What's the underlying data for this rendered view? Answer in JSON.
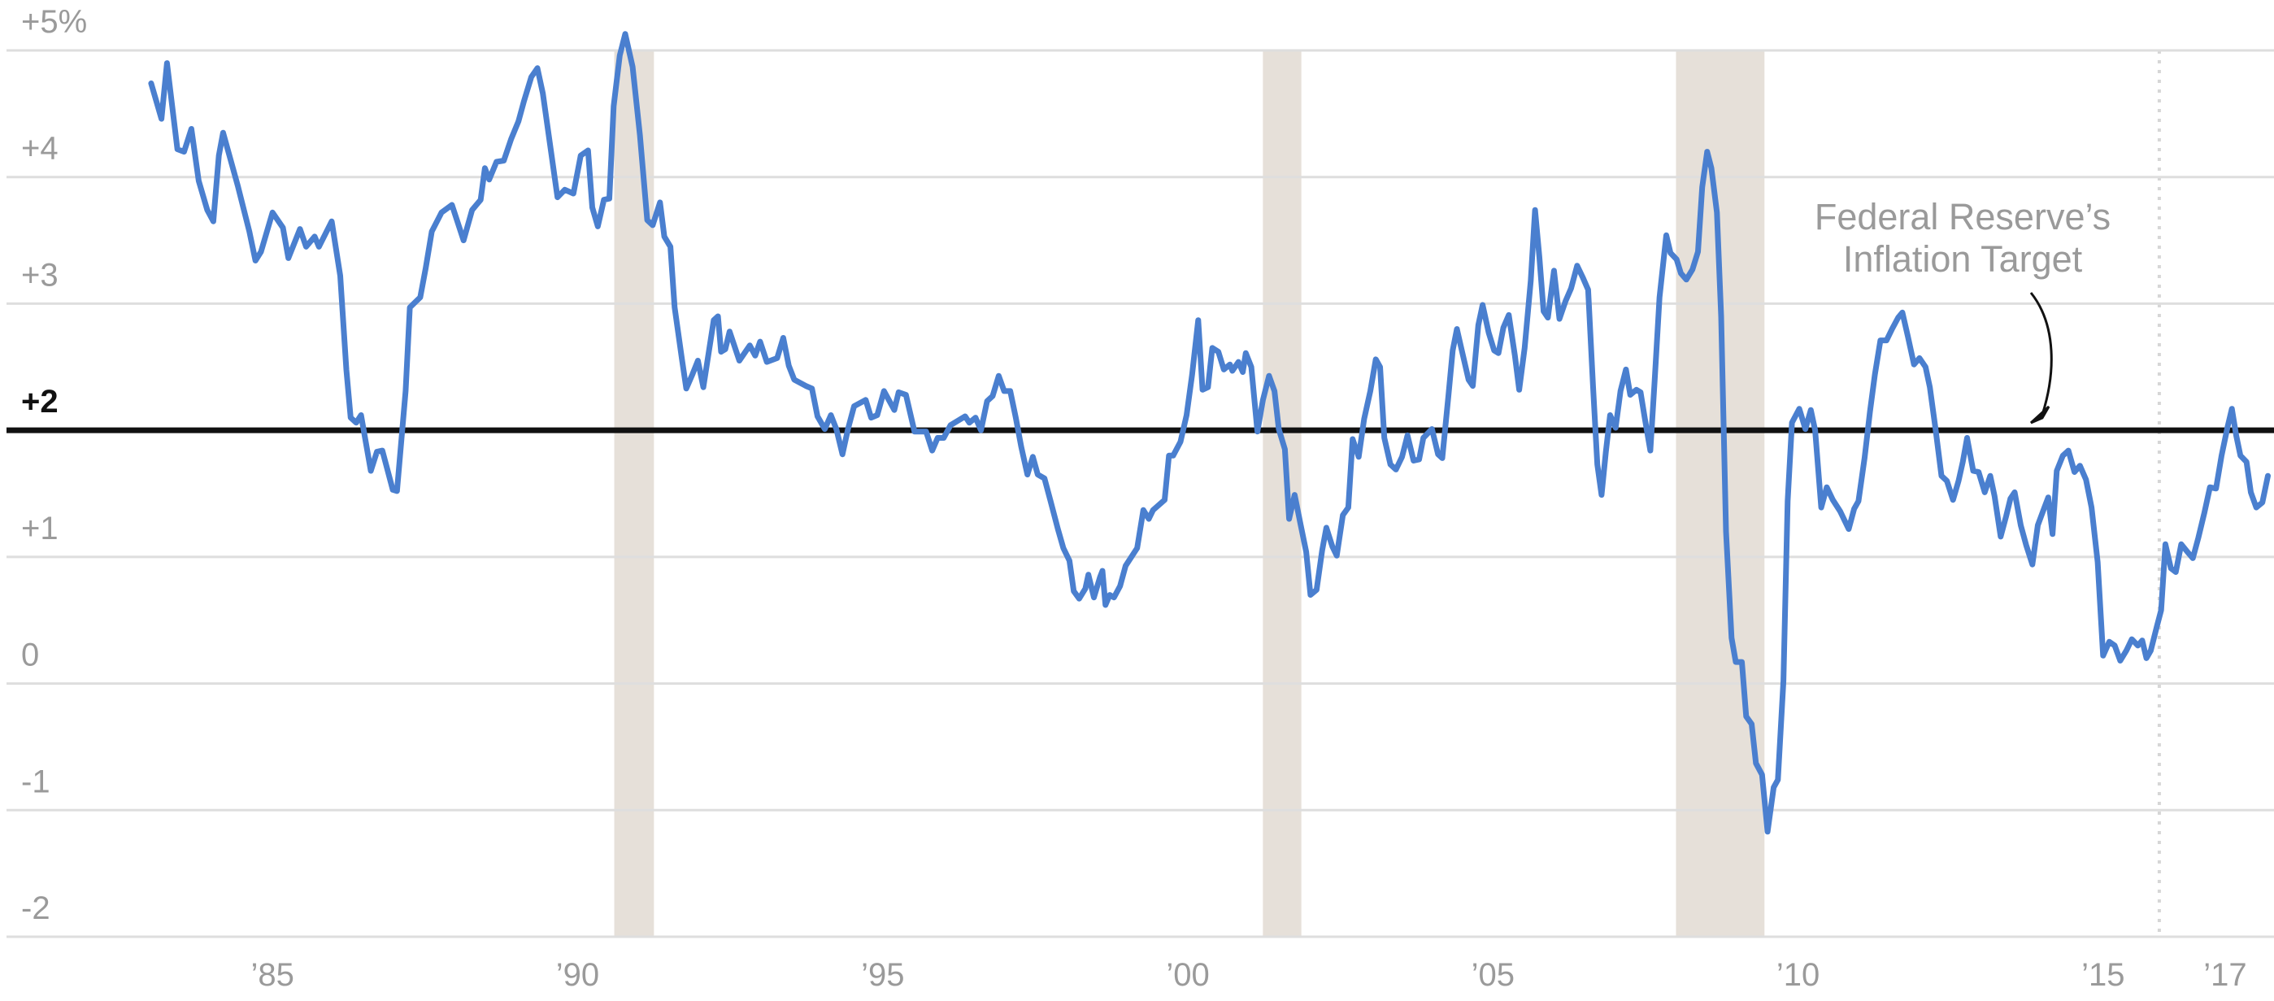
{
  "chart_data": {
    "type": "line",
    "color": "#4a7fcf",
    "grid": true,
    "target": 2,
    "annotation": [
      "Federal Reserve’s",
      "Inflation Target"
    ],
    "recessions": [
      [
        1990.6,
        1991.25
      ],
      [
        2001.23,
        2001.86
      ],
      [
        2008.0,
        2009.45
      ]
    ],
    "vline_x": 2015.92,
    "xlim": [
      1980.64,
      2017.8
    ],
    "ylim": [
      -2,
      5
    ],
    "yticks": [
      {
        "value": 5,
        "label": "+5%"
      },
      {
        "value": 4,
        "label": "+4"
      },
      {
        "value": 3,
        "label": "+3"
      },
      {
        "value": 2,
        "label": "+2"
      },
      {
        "value": 1,
        "label": "+1"
      },
      0,
      -1,
      -2
    ],
    "xticks": [
      {
        "value": 1985,
        "label": "’85"
      },
      {
        "value": 1990,
        "label": "’90"
      },
      {
        "value": 1995,
        "label": "’95"
      },
      {
        "value": 2000,
        "label": "’00"
      },
      {
        "value": 2005,
        "label": "’05"
      },
      {
        "value": 2010,
        "label": "’10"
      },
      {
        "value": 2015,
        "label": "’15"
      },
      {
        "value": 2017,
        "label": "’17"
      }
    ],
    "x": [
      1983.01,
      1983.18,
      1983.27,
      1983.44,
      1983.55,
      1983.67,
      1983.79,
      1983.93,
      1984.03,
      1984.12,
      1984.19,
      1984.43,
      1984.62,
      1984.72,
      1984.81,
      1985.0,
      1985.17,
      1985.26,
      1985.45,
      1985.55,
      1985.69,
      1985.76,
      1985.97,
      1986.11,
      1986.21,
      1986.28,
      1986.37,
      1986.45,
      1986.61,
      1986.71,
      1986.8,
      1986.97,
      1987.04,
      1987.18,
      1987.25,
      1987.42,
      1987.51,
      1987.61,
      1987.77,
      1987.94,
      1988.13,
      1988.27,
      1988.41,
      1988.48,
      1988.55,
      1988.67,
      1988.79,
      1988.91,
      1989.03,
      1989.12,
      1989.24,
      1989.34,
      1989.43,
      1989.55,
      1989.67,
      1989.79,
      1989.93,
      1990.05,
      1990.17,
      1990.24,
      1990.33,
      1990.43,
      1990.52,
      1990.59,
      1990.69,
      1990.78,
      1990.9,
      1991.02,
      1991.14,
      1991.23,
      1991.35,
      1991.42,
      1991.52,
      1991.59,
      1991.71,
      1991.78,
      1991.88,
      1991.97,
      1992.06,
      1992.23,
      1992.3,
      1992.35,
      1992.42,
      1992.49,
      1992.65,
      1992.82,
      1992.91,
      1992.99,
      1993.1,
      1993.27,
      1993.37,
      1993.46,
      1993.55,
      1993.74,
      1993.84,
      1993.93,
      1994.05,
      1994.15,
      1994.24,
      1994.34,
      1994.43,
      1994.53,
      1994.72,
      1994.81,
      1994.91,
      1995.02,
      1995.19,
      1995.26,
      1995.38,
      1995.52,
      1995.71,
      1995.81,
      1995.9,
      1996.0,
      1996.11,
      1996.35,
      1996.42,
      1996.52,
      1996.61,
      1996.71,
      1996.8,
      1996.9,
      1996.99,
      1997.09,
      1997.18,
      1997.27,
      1997.37,
      1997.46,
      1997.54,
      1997.65,
      1997.75,
      1997.87,
      1997.96,
      1998.06,
      1998.13,
      1998.22,
      1998.32,
      1998.37,
      1998.46,
      1998.56,
      1998.6,
      1998.65,
      1998.72,
      1998.79,
      1998.89,
      1998.98,
      1999.17,
      1999.27,
      1999.36,
      1999.43,
      1999.62,
      1999.69,
      1999.76,
      1999.88,
      1999.98,
      2000.07,
      2000.17,
      2000.24,
      2000.33,
      2000.4,
      2000.5,
      2000.59,
      2000.69,
      2000.73,
      2000.83,
      2000.9,
      2000.95,
      2001.04,
      2001.14,
      2001.23,
      2001.33,
      2001.42,
      2001.49,
      2001.59,
      2001.66,
      2001.75,
      2001.85,
      2001.94,
      2002.01,
      2002.11,
      2002.2,
      2002.27,
      2002.37,
      2002.44,
      2002.54,
      2002.63,
      2002.7,
      2002.8,
      2002.89,
      2002.99,
      2003.08,
      2003.15,
      2003.22,
      2003.32,
      2003.41,
      2003.51,
      2003.6,
      2003.7,
      2003.79,
      2003.86,
      2004.0,
      2004.1,
      2004.17,
      2004.27,
      2004.34,
      2004.41,
      2004.48,
      2004.6,
      2004.67,
      2004.76,
      2004.83,
      2004.93,
      2005.02,
      2005.09,
      2005.17,
      2005.26,
      2005.36,
      2005.43,
      2005.52,
      2005.62,
      2005.69,
      2005.76,
      2005.83,
      2005.9,
      2006.0,
      2006.09,
      2006.19,
      2006.28,
      2006.38,
      2006.47,
      2006.56,
      2006.64,
      2006.71,
      2006.78,
      2006.85,
      2006.92,
      2007.01,
      2007.09,
      2007.18,
      2007.25,
      2007.35,
      2007.42,
      2007.49,
      2007.58,
      2007.65,
      2007.73,
      2007.84,
      2007.91,
      2008.01,
      2008.08,
      2008.17,
      2008.27,
      2008.36,
      2008.43,
      2008.51,
      2008.58,
      2008.67,
      2008.74,
      2008.82,
      2008.91,
      2008.98,
      2009.08,
      2009.15,
      2009.24,
      2009.31,
      2009.41,
      2009.5,
      2009.6,
      2009.67,
      2009.76,
      2009.83,
      2009.9,
      2010.02,
      2010.12,
      2010.21,
      2010.28,
      2010.38,
      2010.47,
      2010.57,
      2010.69,
      2010.83,
      2010.92,
      2010.99,
      2011.09,
      2011.18,
      2011.26,
      2011.35,
      2011.45,
      2011.54,
      2011.64,
      2011.71,
      2011.8,
      2011.9,
      2011.99,
      2012.09,
      2012.16,
      2012.25,
      2012.35,
      2012.44,
      2012.54,
      2012.63,
      2012.7,
      2012.77,
      2012.87,
      2012.96,
      2013.06,
      2013.15,
      2013.22,
      2013.32,
      2013.41,
      2013.48,
      2013.55,
      2013.65,
      2013.74,
      2013.84,
      2013.93,
      2014.03,
      2014.1,
      2014.17,
      2014.24,
      2014.34,
      2014.43,
      2014.53,
      2014.62,
      2014.72,
      2014.81,
      2014.91,
      2015.0,
      2015.1,
      2015.19,
      2015.28,
      2015.38,
      2015.47,
      2015.57,
      2015.64,
      2015.71,
      2015.78,
      2015.88,
      2015.95,
      2016.02,
      2016.11,
      2016.19,
      2016.28,
      2016.38,
      2016.47,
      2016.56,
      2016.66,
      2016.75,
      2016.85,
      2016.94,
      2017.04,
      2017.11,
      2017.18,
      2017.25,
      2017.35,
      2017.42,
      2017.51,
      2017.61,
      2017.7
    ],
    "values": [
      4.74,
      4.46,
      4.9,
      4.22,
      4.2,
      4.38,
      3.97,
      3.74,
      3.65,
      4.17,
      4.35,
      3.93,
      3.57,
      3.34,
      3.41,
      3.72,
      3.6,
      3.36,
      3.59,
      3.45,
      3.53,
      3.45,
      3.65,
      3.22,
      2.48,
      2.1,
      2.06,
      2.12,
      1.68,
      1.83,
      1.84,
      1.53,
      1.52,
      2.31,
      2.97,
      3.05,
      3.28,
      3.57,
      3.72,
      3.78,
      3.5,
      3.74,
      3.82,
      4.07,
      3.98,
      4.12,
      4.13,
      4.3,
      4.44,
      4.6,
      4.79,
      4.86,
      4.66,
      4.25,
      3.84,
      3.9,
      3.87,
      4.17,
      4.21,
      3.76,
      3.61,
      3.82,
      3.83,
      4.56,
      4.96,
      5.13,
      4.87,
      4.33,
      3.66,
      3.62,
      3.8,
      3.53,
      3.45,
      2.97,
      2.56,
      2.33,
      2.44,
      2.55,
      2.34,
      2.87,
      2.9,
      2.62,
      2.64,
      2.78,
      2.55,
      2.67,
      2.59,
      2.7,
      2.54,
      2.57,
      2.73,
      2.51,
      2.4,
      2.35,
      2.33,
      2.11,
      2.01,
      2.12,
      2.01,
      1.81,
      2.01,
      2.19,
      2.24,
      2.1,
      2.12,
      2.31,
      2.16,
      2.3,
      2.28,
      1.99,
      1.99,
      1.84,
      1.94,
      1.94,
      2.04,
      2.11,
      2.06,
      2.1,
      2.0,
      2.23,
      2.27,
      2.43,
      2.31,
      2.31,
      2.1,
      1.87,
      1.65,
      1.79,
      1.65,
      1.62,
      1.44,
      1.22,
      1.07,
      0.97,
      0.73,
      0.67,
      0.75,
      0.86,
      0.68,
      0.84,
      0.89,
      0.62,
      0.7,
      0.68,
      0.77,
      0.93,
      1.07,
      1.37,
      1.3,
      1.37,
      1.45,
      1.8,
      1.8,
      1.91,
      2.12,
      2.44,
      2.87,
      2.32,
      2.34,
      2.65,
      2.62,
      2.48,
      2.52,
      2.47,
      2.54,
      2.46,
      2.61,
      2.5,
      1.99,
      2.24,
      2.43,
      2.31,
      2.01,
      1.85,
      1.3,
      1.49,
      1.25,
      1.04,
      0.7,
      0.74,
      1.05,
      1.23,
      1.08,
      1.01,
      1.33,
      1.39,
      1.93,
      1.79,
      2.09,
      2.31,
      2.56,
      2.5,
      1.94,
      1.73,
      1.69,
      1.79,
      1.96,
      1.76,
      1.77,
      1.94,
      2.01,
      1.81,
      1.78,
      2.27,
      2.63,
      2.8,
      2.65,
      2.4,
      2.35,
      2.83,
      2.99,
      2.77,
      2.63,
      2.61,
      2.81,
      2.91,
      2.59,
      2.32,
      2.65,
      3.18,
      3.74,
      3.37,
      2.94,
      2.89,
      3.26,
      2.88,
      3.02,
      3.12,
      3.3,
      3.21,
      3.11,
      2.35,
      1.73,
      1.49,
      1.83,
      2.12,
      2.02,
      2.31,
      2.48,
      2.28,
      2.32,
      2.3,
      2.09,
      1.84,
      2.39,
      3.05,
      3.54,
      3.4,
      3.35,
      3.24,
      3.19,
      3.27,
      3.41,
      3.92,
      4.2,
      4.07,
      3.72,
      2.9,
      1.2,
      0.36,
      0.17,
      0.17,
      -0.26,
      -0.32,
      -0.63,
      -0.72,
      -1.17,
      -0.82,
      -0.76,
      0.02,
      1.44,
      2.06,
      2.17,
      2.01,
      2.16,
      2.0,
      1.39,
      1.55,
      1.45,
      1.36,
      1.22,
      1.38,
      1.44,
      1.78,
      2.15,
      2.44,
      2.71,
      2.71,
      2.8,
      2.89,
      2.93,
      2.74,
      2.52,
      2.57,
      2.5,
      2.34,
      2.02,
      1.64,
      1.6,
      1.45,
      1.6,
      1.75,
      1.94,
      1.68,
      1.67,
      1.51,
      1.64,
      1.48,
      1.16,
      1.32,
      1.46,
      1.51,
      1.25,
      1.09,
      0.94,
      1.25,
      1.38,
      1.47,
      1.18,
      1.68,
      1.8,
      1.84,
      1.67,
      1.72,
      1.61,
      1.39,
      0.96,
      0.22,
      0.33,
      0.3,
      0.18,
      0.26,
      0.35,
      0.3,
      0.34,
      0.2,
      0.26,
      0.45,
      0.58,
      1.1,
      0.91,
      0.88,
      1.1,
      1.04,
      0.99,
      1.15,
      1.35,
      1.55,
      1.54,
      1.8,
      2.03,
      2.17,
      1.96,
      1.8,
      1.75,
      1.51,
      1.39,
      1.43,
      1.64
    ]
  }
}
